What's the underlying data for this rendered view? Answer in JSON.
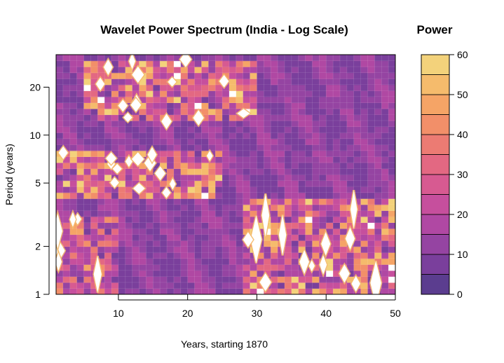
{
  "chart_data": {
    "type": "heatmap",
    "title": "Wavelet Power Spectrum (India - Log Scale)",
    "xlabel": "Years, starting 1870",
    "ylabel": "Period (years)",
    "xlim": [
      1,
      50
    ],
    "ylim": [
      1,
      32
    ],
    "y_scale": "log",
    "x_ticks": [
      10,
      20,
      30,
      40,
      50
    ],
    "y_ticks": [
      1,
      2,
      5,
      10,
      20
    ],
    "grid": true,
    "colorbar": {
      "title": "Power",
      "ticks": [
        0,
        10,
        20,
        30,
        40,
        50,
        60
      ],
      "levels": [
        0,
        5,
        10,
        15,
        20,
        25,
        30,
        35,
        40,
        45,
        50,
        55,
        60
      ],
      "colors": [
        "#5b3d8f",
        "#7a3f9c",
        "#9544a2",
        "#b048a3",
        "#c64f9d",
        "#d75a91",
        "#e36882",
        "#ec7b73",
        "#f28f69",
        "#f5a466",
        "#f5bb6c",
        "#f3d27b"
      ]
    },
    "high_power_bands": [
      {
        "period_range": [
          12,
          30
        ],
        "year_range": [
          5,
          30
        ],
        "level": "high"
      },
      {
        "period_range": [
          4,
          8
        ],
        "year_range": [
          1,
          25
        ],
        "level": "high"
      },
      {
        "period_range": [
          1,
          4
        ],
        "year_range": [
          28,
          50
        ],
        "level": "high"
      },
      {
        "period_range": [
          1,
          3
        ],
        "year_range": [
          1,
          10
        ],
        "level": "medium"
      }
    ]
  }
}
